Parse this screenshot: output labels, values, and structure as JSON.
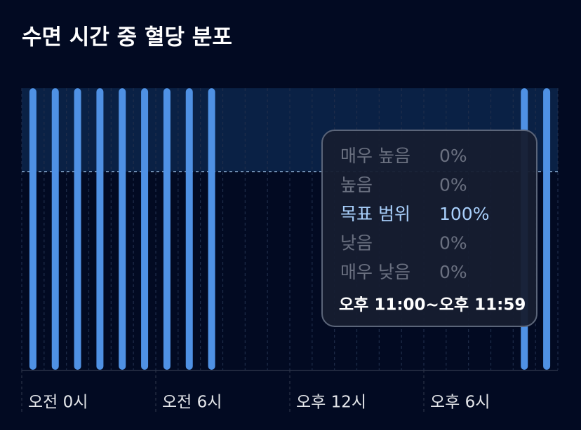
{
  "chart_data": {
    "type": "bar",
    "title": "수면 시간 중 혈당 분포",
    "categories": [
      "오전 0시",
      null,
      null,
      null,
      null,
      null,
      "오전 6시",
      null,
      null,
      null,
      null,
      null,
      "오후 12시",
      null,
      null,
      null,
      null,
      null,
      "오후 6시",
      null,
      null,
      null,
      null,
      null
    ],
    "values": [
      100,
      100,
      100,
      100,
      100,
      100,
      100,
      100,
      100,
      null,
      null,
      null,
      null,
      null,
      null,
      null,
      null,
      null,
      null,
      null,
      null,
      null,
      100,
      100
    ],
    "color": "#4f91e4",
    "ylim": [
      0,
      100
    ]
  },
  "tooltip": {
    "rows": [
      {
        "label": "매우 높음",
        "value": "0%"
      },
      {
        "label": "높음",
        "value": "0%"
      },
      {
        "label": "목표 범위",
        "value": "100%"
      },
      {
        "label": "낮음",
        "value": "0%"
      },
      {
        "label": "매우 낮음",
        "value": "0%"
      }
    ],
    "active_row": 2,
    "time": "오후 11:00~오후 11:59"
  }
}
